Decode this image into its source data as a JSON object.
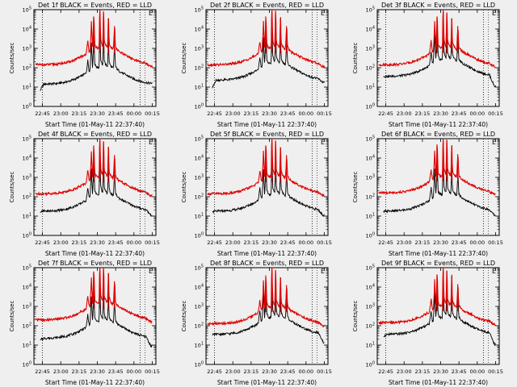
{
  "page": {
    "background": "#efefef"
  },
  "colors": {
    "events": "#000000",
    "lld": "#e00000",
    "frame": "#000000"
  },
  "chart_data": [
    {
      "type": "line",
      "title": "Det 1f BLACK = Events, RED = LLD",
      "xlabel": "Start Time (01-May-11 22:37:40)",
      "ylabel": "Counts/sec",
      "xlim_min": [
        0,
        100
      ],
      "ylim_log10": [
        0,
        5
      ],
      "xticks": [
        "22:45",
        "23:00",
        "23:15",
        "23:30",
        "23:45",
        "00:00",
        "00:15"
      ],
      "yticks": [
        "10^0",
        "10^1",
        "10^2",
        "10^3",
        "10^4",
        "10^5"
      ],
      "events_base": 1.4,
      "lld_base": 2.15,
      "events_start": 0.5,
      "events_end": 1.45,
      "marker": "E"
    },
    {
      "type": "line",
      "title": "Det 2f BLACK = Events, RED = LLD",
      "xlabel": "Start Time (01-May-11 22:37:40)",
      "ylabel": "Counts/sec",
      "xlim_min": [
        0,
        100
      ],
      "ylim_log10": [
        0,
        5
      ],
      "xticks": [
        "22:45",
        "23:00",
        "23:15",
        "23:30",
        "23:45",
        "00:00",
        "00:15"
      ],
      "yticks": [
        "10^0",
        "10^1",
        "10^2",
        "10^3",
        "10^4",
        "10^5"
      ],
      "events_base": 1.6,
      "lld_base": 2.15,
      "events_start": 0.4,
      "events_end": 1.5,
      "marker": "E"
    },
    {
      "type": "line",
      "title": "Det 3f BLACK = Events, RED = LLD",
      "xlabel": "Start Time (01-May-11 22:37:40)",
      "ylabel": "Counts/sec",
      "xlim_min": [
        0,
        100
      ],
      "ylim_log10": [
        0,
        5
      ],
      "xticks": [
        "22:45",
        "23:00",
        "23:15",
        "23:30",
        "23:45",
        "00:00",
        "00:15"
      ],
      "yticks": [
        "10^0",
        "10^1",
        "10^2",
        "10^3",
        "10^4",
        "10^5"
      ],
      "events_base": 1.8,
      "lld_base": 2.15,
      "events_start": 1.8,
      "events_end": 1.3,
      "marker": "E"
    },
    {
      "type": "line",
      "title": "Det 4f BLACK = Events, RED = LLD",
      "xlabel": "Start Time (01-May-11 22:37:40)",
      "ylabel": "Counts/sec",
      "xlim_min": [
        0,
        100
      ],
      "ylim_log10": [
        0,
        5
      ],
      "xticks": [
        "22:45",
        "23:00",
        "23:15",
        "23:30",
        "23:45",
        "00:00",
        "00:15"
      ],
      "yticks": [
        "10^0",
        "10^1",
        "10^2",
        "10^3",
        "10^4",
        "10^5"
      ],
      "events_base": 1.5,
      "lld_base": 2.15,
      "events_start": 1.4,
      "events_end": 1.3,
      "marker": "E"
    },
    {
      "type": "line",
      "title": "Det 5f BLACK = Events, RED = LLD",
      "xlabel": "Start Time (01-May-11 22:37:40)",
      "ylabel": "Counts/sec",
      "xlim_min": [
        0,
        100
      ],
      "ylim_log10": [
        0,
        5
      ],
      "xticks": [
        "22:45",
        "23:00",
        "23:15",
        "23:30",
        "23:45",
        "00:00",
        "00:15"
      ],
      "yticks": [
        "10^0",
        "10^1",
        "10^2",
        "10^3",
        "10^4",
        "10^5"
      ],
      "events_base": 1.5,
      "lld_base": 2.15,
      "events_start": 1.4,
      "events_end": 1.3,
      "marker": "E"
    },
    {
      "type": "line",
      "title": "Det 6f BLACK = Events, RED = LLD",
      "xlabel": "Start Time (01-May-11 22:37:40)",
      "ylabel": "Counts/sec",
      "xlim_min": [
        0,
        100
      ],
      "ylim_log10": [
        0,
        5
      ],
      "xticks": [
        "22:45",
        "23:00",
        "23:15",
        "23:30",
        "23:45",
        "00:00",
        "00:15"
      ],
      "yticks": [
        "10^0",
        "10^1",
        "10^2",
        "10^3",
        "10^4",
        "10^5"
      ],
      "events_base": 1.5,
      "lld_base": 2.2,
      "events_start": 1.4,
      "events_end": 1.3,
      "marker": "E"
    },
    {
      "type": "line",
      "title": "Det 7f BLACK = Events, RED = LLD",
      "xlabel": "Start Time (01-May-11 22:37:40)",
      "ylabel": "Counts/sec",
      "xlim_min": [
        0,
        100
      ],
      "ylim_log10": [
        0,
        5
      ],
      "xticks": [
        "22:45",
        "23:00",
        "23:15",
        "23:30",
        "23:45",
        "00:00",
        "00:15"
      ],
      "yticks": [
        "10^0",
        "10^1",
        "10^2",
        "10^3",
        "10^4",
        "10^5"
      ],
      "events_base": 1.6,
      "lld_base": 2.3,
      "events_start": 1.3,
      "events_end": 1.2,
      "marker": "E"
    },
    {
      "type": "line",
      "title": "Det 8f BLACK = Events, RED = LLD",
      "xlabel": "Start Time (01-May-11 22:37:40)",
      "ylabel": "Counts/sec",
      "xlim_min": [
        0,
        100
      ],
      "ylim_log10": [
        0,
        5
      ],
      "xticks": [
        "22:45",
        "23:00",
        "23:15",
        "23:30",
        "23:45",
        "00:00",
        "00:15"
      ],
      "yticks": [
        "10^0",
        "10^1",
        "10^2",
        "10^3",
        "10^4",
        "10^5"
      ],
      "events_base": 1.8,
      "lld_base": 2.1,
      "events_start": 1.7,
      "events_end": 1.4,
      "marker": "E"
    },
    {
      "type": "line",
      "title": "Det 9f BLACK = Events, RED = LLD",
      "xlabel": "Start Time (01-May-11 22:37:40)",
      "ylabel": "Counts/sec",
      "xlim_min": [
        0,
        100
      ],
      "ylim_log10": [
        0,
        5
      ],
      "xticks": [
        "22:45",
        "23:00",
        "23:15",
        "23:30",
        "23:45",
        "00:00",
        "00:15"
      ],
      "yticks": [
        "10^0",
        "10^1",
        "10^2",
        "10^3",
        "10^4",
        "10^5"
      ],
      "events_base": 1.8,
      "lld_base": 2.15,
      "events_start": 1.5,
      "events_end": 1.3,
      "marker": "E"
    }
  ]
}
